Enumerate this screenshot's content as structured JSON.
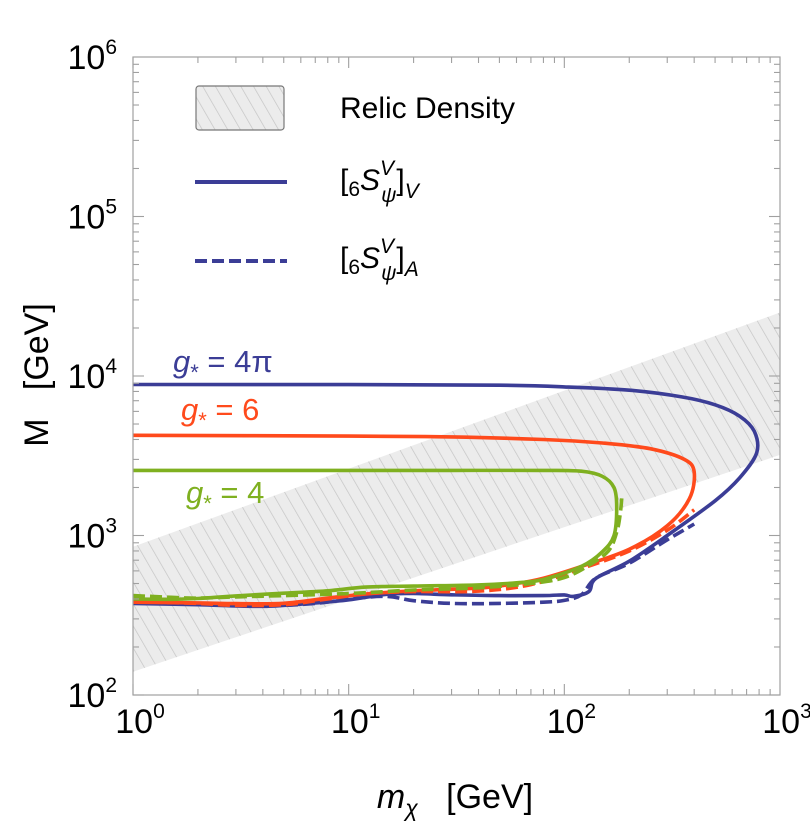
{
  "chart_data": {
    "type": "line",
    "xlabel": "m_χ [GeV]",
    "ylabel": "M [GeV]",
    "xscale": "log",
    "yscale": "log",
    "xlim": [
      1,
      1000
    ],
    "ylim": [
      100,
      1000000
    ],
    "x_ticks": [
      {
        "base": "10",
        "exp": "0"
      },
      {
        "base": "10",
        "exp": "1"
      },
      {
        "base": "10",
        "exp": "2"
      },
      {
        "base": "10",
        "exp": "3"
      }
    ],
    "y_ticks": [
      {
        "base": "10",
        "exp": "2"
      },
      {
        "base": "10",
        "exp": "3"
      },
      {
        "base": "10",
        "exp": "4"
      },
      {
        "base": "10",
        "exp": "5"
      },
      {
        "base": "10",
        "exp": "6"
      }
    ],
    "legend": {
      "position": "top-left",
      "entries": [
        {
          "label": "Relic Density",
          "kind": "hatched-band"
        },
        {
          "label": "[6S_ψ^V]_V",
          "kind": "solid-line",
          "color": "#3b3d96"
        },
        {
          "label": "[6S_ψ^V]_A",
          "kind": "dashed-line",
          "color": "#3b3d96"
        }
      ]
    },
    "relic_band": {
      "lower": [
        [
          1,
          140
        ],
        [
          1000,
          3200
        ]
      ],
      "upper": [
        [
          1,
          850
        ],
        [
          1000,
          25000
        ]
      ]
    },
    "series": [
      {
        "name": "g* = 4π",
        "color": "#3b3d96",
        "label": {
          "sym": "g",
          "sub": "*",
          "rest": " = 4π"
        },
        "solid": [
          [
            1,
            375
          ],
          [
            2,
            368
          ],
          [
            4,
            360
          ],
          [
            7,
            378
          ],
          [
            10,
            395
          ],
          [
            15,
            428
          ],
          [
            20,
            433
          ],
          [
            30,
            425
          ],
          [
            50,
            420
          ],
          [
            80,
            420
          ],
          [
            100,
            424
          ],
          [
            110,
            415
          ],
          [
            130,
            445
          ],
          [
            140,
            538
          ],
          [
            200,
            690
          ],
          [
            300,
            1000
          ],
          [
            500,
            1650
          ],
          [
            650,
            2300
          ],
          [
            780,
            3300
          ],
          [
            760,
            4500
          ],
          [
            650,
            5600
          ],
          [
            500,
            6600
          ],
          [
            350,
            7400
          ],
          [
            200,
            8150
          ],
          [
            100,
            8550
          ],
          [
            50,
            8750
          ],
          [
            10,
            8830
          ],
          [
            1,
            8850
          ]
        ],
        "dashed": [
          [
            1,
            380
          ],
          [
            2,
            372
          ],
          [
            4,
            362
          ],
          [
            7,
            375
          ],
          [
            10,
            400
          ],
          [
            15,
            415
          ],
          [
            20,
            390
          ],
          [
            30,
            375
          ],
          [
            50,
            375
          ],
          [
            80,
            382
          ],
          [
            100,
            392
          ],
          [
            120,
            425
          ],
          [
            140,
            540
          ],
          [
            200,
            670
          ],
          [
            300,
            940
          ],
          [
            400,
            1180
          ]
        ]
      },
      {
        "name": "g* = 6",
        "color": "#ff4a1c",
        "label": {
          "sym": "g",
          "sub": "*",
          "rest": " = 6"
        },
        "solid": [
          [
            1,
            382
          ],
          [
            2,
            378
          ],
          [
            3,
            374
          ],
          [
            5,
            376
          ],
          [
            8,
            405
          ],
          [
            12,
            430
          ],
          [
            20,
            450
          ],
          [
            40,
            468
          ],
          [
            60,
            500
          ],
          [
            80,
            540
          ],
          [
            120,
            640
          ],
          [
            200,
            820
          ],
          [
            300,
            1150
          ],
          [
            380,
            1700
          ],
          [
            400,
            2500
          ],
          [
            360,
            3000
          ],
          [
            250,
            3500
          ],
          [
            150,
            3800
          ],
          [
            80,
            4000
          ],
          [
            30,
            4150
          ],
          [
            10,
            4200
          ],
          [
            1,
            4250
          ]
        ],
        "dashed": [
          [
            1,
            385
          ],
          [
            2,
            375
          ],
          [
            3,
            365
          ],
          [
            5,
            368
          ],
          [
            8,
            400
          ],
          [
            12,
            432
          ],
          [
            20,
            445
          ],
          [
            40,
            448
          ],
          [
            70,
            492
          ],
          [
            120,
            620
          ],
          [
            200,
            800
          ],
          [
            300,
            1080
          ],
          [
            400,
            1450
          ]
        ]
      },
      {
        "name": "g* = 4",
        "color": "#7fb020",
        "label": {
          "sym": "g",
          "sub": "*",
          "rest": " = 4"
        },
        "solid": [
          [
            1,
            400
          ],
          [
            1.5,
            398
          ],
          [
            2,
            403
          ],
          [
            3,
            418
          ],
          [
            5,
            435
          ],
          [
            8,
            450
          ],
          [
            12,
            475
          ],
          [
            20,
            482
          ],
          [
            40,
            490
          ],
          [
            60,
            505
          ],
          [
            80,
            530
          ],
          [
            120,
            640
          ],
          [
            150,
            790
          ],
          [
            170,
            1000
          ],
          [
            175,
            1500
          ],
          [
            170,
            2000
          ],
          [
            150,
            2350
          ],
          [
            120,
            2530
          ],
          [
            80,
            2560
          ],
          [
            30,
            2560
          ],
          [
            10,
            2560
          ],
          [
            1,
            2560
          ]
        ],
        "dashed": [
          [
            1,
            420
          ],
          [
            1.5,
            410
          ],
          [
            2,
            405
          ],
          [
            3,
            412
          ],
          [
            5,
            420
          ],
          [
            8,
            428
          ],
          [
            12,
            438
          ],
          [
            20,
            455
          ],
          [
            40,
            470
          ],
          [
            70,
            500
          ],
          [
            100,
            545
          ],
          [
            130,
            650
          ],
          [
            160,
            800
          ],
          [
            175,
            1050
          ],
          [
            182,
            1400
          ],
          [
            185,
            1800
          ]
        ]
      }
    ]
  }
}
